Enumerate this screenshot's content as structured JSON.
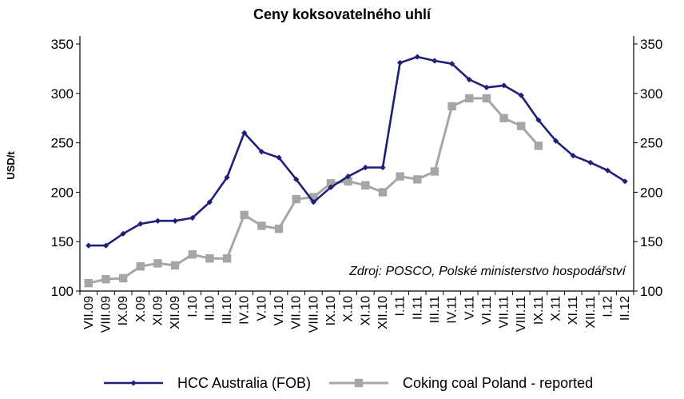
{
  "chart_data": {
    "type": "line",
    "title": "Ceny koksovatelného uhlí",
    "ylabel": "USD/t",
    "ylim": [
      100,
      350
    ],
    "yticks": [
      100,
      150,
      200,
      250,
      300,
      350
    ],
    "secondary_axis_ticks": [
      100,
      150,
      200,
      250,
      300,
      350
    ],
    "annotation": "Zdroj: POSCO, Polské ministerstvo hospodářství",
    "legend_position": "bottom",
    "x": [
      "VII.09",
      "VIII.09",
      "IX.09",
      "X.09",
      "XI.09",
      "XII.09",
      "I.10",
      "II.10",
      "III.10",
      "IV.10",
      "V.10",
      "VI.10",
      "VII.10",
      "VIII.10",
      "IX.10",
      "X.10",
      "XI.10",
      "XII.10",
      "I.11",
      "II.11",
      "III.11",
      "IV.11",
      "V.11",
      "VI.11",
      "VII.11",
      "VIII.11",
      "IX.11",
      "X.11",
      "XI.11",
      "XII.11",
      "I.12",
      "II.12"
    ],
    "series": [
      {
        "name": "HCC Australia (FOB)",
        "color": "#1f1f7a",
        "marker": "diamond",
        "values": [
          146,
          146,
          158,
          168,
          171,
          171,
          174,
          190,
          215,
          260,
          241,
          235,
          213,
          190,
          205,
          216,
          225,
          225,
          331,
          337,
          333,
          330,
          314,
          306,
          308,
          298,
          273,
          252,
          237,
          230,
          222,
          211
        ]
      },
      {
        "name": "Coking coal Poland - reported",
        "color": "#a6a6a6",
        "marker": "square",
        "values": [
          108,
          112,
          113,
          125,
          128,
          126,
          137,
          133,
          133,
          177,
          166,
          163,
          193,
          195,
          209,
          211,
          207,
          200,
          216,
          213,
          221,
          287,
          295,
          295,
          275,
          267,
          247,
          null,
          null,
          null,
          null,
          null
        ]
      }
    ]
  }
}
